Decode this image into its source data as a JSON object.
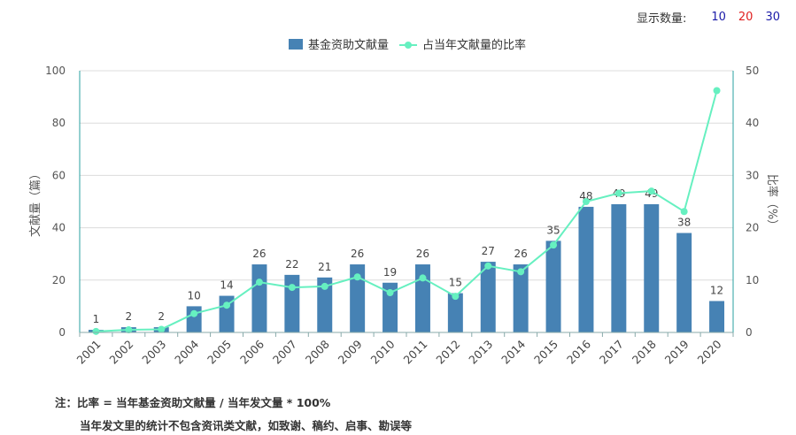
{
  "display_count": {
    "label": "显示数量:",
    "options": [
      "10",
      "20",
      "30"
    ]
  },
  "legend": {
    "bar_label": "基金资助文献量",
    "line_label": "占当年文献量的比率"
  },
  "notes": {
    "line1": "注：比率 = 当年基金资助文献量 / 当年发文量 * 100%",
    "line2": "当年发文里的统计不包含资讯类文献，如致谢、稿约、启事、勘误等"
  },
  "colors": {
    "bar": "#4682b4",
    "line": "#66f0c0",
    "axis_right": "#2aa0a0"
  },
  "chart_data": {
    "type": "bar",
    "categories": [
      "2001",
      "2002",
      "2003",
      "2004",
      "2005",
      "2006",
      "2007",
      "2008",
      "2009",
      "2010",
      "2011",
      "2012",
      "2013",
      "2014",
      "2015",
      "2016",
      "2017",
      "2018",
      "2019",
      "2020"
    ],
    "ylabel": "文献量（篇）",
    "ylabel_right": "比率（%）",
    "ylim": [
      0,
      100
    ],
    "ylim_right": [
      0,
      50
    ],
    "yticks": [
      "0",
      "20",
      "40",
      "60",
      "80",
      "100"
    ],
    "yticks_right": [
      "0",
      "10",
      "20",
      "30",
      "40",
      "50"
    ],
    "grid": true,
    "legend_position": "top-center",
    "series": [
      {
        "name": "基金资助文献量",
        "type": "bar",
        "values": [
          1,
          2,
          2,
          10,
          14,
          26,
          22,
          21,
          26,
          19,
          26,
          15,
          27,
          26,
          35,
          48,
          49,
          49,
          38,
          12
        ],
        "labels": [
          "1",
          "2",
          "2",
          "10",
          "14",
          "26",
          "22",
          "21",
          "26",
          "19",
          "26",
          "15",
          "27",
          "26",
          "35",
          "48",
          "49",
          "49",
          "38",
          "12"
        ]
      },
      {
        "name": "占当年文献量的比率",
        "type": "line",
        "axis": "right",
        "values": [
          0.2,
          0.5,
          0.6,
          3.6,
          5.2,
          9.6,
          8.6,
          8.8,
          10.6,
          7.6,
          10.4,
          6.9,
          12.7,
          11.6,
          16.7,
          25.0,
          26.6,
          27.0,
          23.1,
          46.2
        ]
      }
    ]
  }
}
